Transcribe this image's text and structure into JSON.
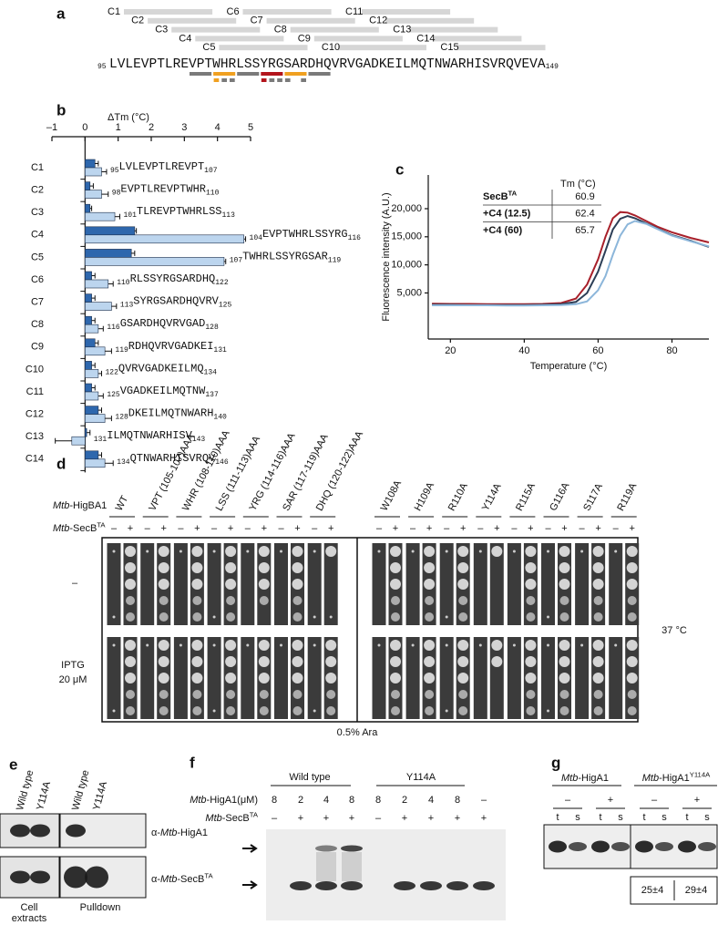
{
  "panel_a": {
    "label": "a",
    "peptides": [
      "C1",
      "C2",
      "C3",
      "C4",
      "C5",
      "C6",
      "C7",
      "C8",
      "C9",
      "C10",
      "C11",
      "C12",
      "C13",
      "C14",
      "C15"
    ],
    "sequence": {
      "start": 95,
      "residues": "LVLEVPTLREVPTWHRLSSYRGSARDHQVRVGADKEILMQTNWARHISVRQVEVA",
      "end": 149
    }
  },
  "chart_data": [
    {
      "type": "bar",
      "orientation": "horizontal",
      "panel_label": "b",
      "title": "ΔTm (°C)",
      "xlim": [
        -1,
        5
      ],
      "xticks": [
        {
          "value": -1,
          "label": "–1"
        },
        0,
        1,
        2,
        3,
        4,
        5
      ],
      "categories": [
        "C1",
        "C2",
        "C3",
        "C4",
        "C5",
        "C6",
        "C7",
        "C8",
        "C9",
        "C10",
        "C11",
        "C12",
        "C13",
        "C14"
      ],
      "series": [
        {
          "color": "#2e67ad",
          "values": [
            0.3,
            0.15,
            0.15,
            1.5,
            1.4,
            0.2,
            0.2,
            0.2,
            0.3,
            0.2,
            0.2,
            0.4,
            0.05,
            0.4
          ],
          "errors": [
            0.1,
            0.1,
            0.05,
            0.05,
            0.1,
            0.1,
            0.1,
            0.1,
            0.1,
            0.1,
            0.1,
            0.1,
            0.1,
            0.1
          ]
        },
        {
          "color": "#bcd5ee",
          "values": [
            0.5,
            0.5,
            0.9,
            4.8,
            4.2,
            0.7,
            0.8,
            0.4,
            0.6,
            0.4,
            0.4,
            0.6,
            -0.4,
            0.6
          ],
          "errors": [
            0.15,
            0.2,
            0.15,
            0.05,
            0.05,
            0.15,
            0.15,
            0.15,
            0.2,
            0.1,
            0.15,
            0.2,
            0.5,
            0.25
          ]
        }
      ],
      "peptides": [
        {
          "start": 95,
          "sequence": "LVLEVPTLREVPT",
          "end": 107
        },
        {
          "start": 98,
          "sequence": "EVPTLREVPTWHR",
          "end": 110
        },
        {
          "start": 101,
          "sequence": "TLREVPTWHRLSS",
          "end": 113
        },
        {
          "start": 104,
          "sequence": "EVPTWHRLSSYRG",
          "end": 116
        },
        {
          "start": 107,
          "sequence": "TWHRLSSYRGSAR",
          "end": 119
        },
        {
          "start": 110,
          "sequence": "RLSSYRGSARDHQ",
          "end": 122
        },
        {
          "start": 113,
          "sequence": "SYRGSARDHQVRV",
          "end": 125
        },
        {
          "start": 116,
          "sequence": "GSARDHQVRVGAD",
          "end": 128
        },
        {
          "start": 119,
          "sequence": "RDHQVRVGADKEI",
          "end": 131
        },
        {
          "start": 122,
          "sequence": "QVRVGADKEILMQ",
          "end": 134
        },
        {
          "start": 125,
          "sequence": "VGADKEILMQTNW",
          "end": 137
        },
        {
          "start": 128,
          "sequence": "DKEILMQTNWARH",
          "end": 140
        },
        {
          "start": 131,
          "sequence": "ILMQTNWARHISV",
          "end": 143
        },
        {
          "start": 134,
          "sequence": "QTNWARHISVRQV",
          "end": 146
        }
      ]
    },
    {
      "type": "line",
      "panel_label": "c",
      "xlabel": "Temperature (°C)",
      "ylabel": "Fluorescence intensity (A.U.)",
      "xlim": [
        14,
        90
      ],
      "xticks": [
        20,
        40,
        60,
        80
      ],
      "ylim": [
        -3200,
        26000
      ],
      "yticks": [
        {
          "value": 5000,
          "label": "5,000"
        },
        {
          "value": 10000,
          "label": "10,000"
        },
        {
          "value": 15000,
          "label": "15,000"
        },
        {
          "value": 20000,
          "label": "20,000"
        }
      ],
      "legend_header": "Tm (°C)",
      "x": [
        15,
        20,
        25,
        30,
        35,
        40,
        45,
        50,
        54,
        57,
        60,
        62,
        64,
        66,
        68,
        70,
        73,
        76,
        80,
        85,
        90
      ],
      "series": [
        {
          "name": "SecB",
          "superscript": "TA",
          "color": "#a8202a",
          "tm": 60.9,
          "values": [
            3100,
            3050,
            3050,
            3000,
            3000,
            3000,
            3050,
            3200,
            4000,
            6500,
            11000,
            15000,
            18300,
            19400,
            19300,
            18800,
            17800,
            16800,
            15800,
            14800,
            14000
          ]
        },
        {
          "name": "+C4 (12.5)",
          "color": "#2c3e56",
          "tm": 62.4,
          "values": [
            2900,
            2900,
            2850,
            2850,
            2850,
            2850,
            2900,
            3000,
            3400,
            5000,
            8800,
            12500,
            16300,
            18200,
            18700,
            18300,
            17400,
            16500,
            15300,
            14300,
            13200
          ]
        },
        {
          "name": "+C4 (60)",
          "color": "#8cb6da",
          "tm": 65.7,
          "values": [
            2800,
            2800,
            2800,
            2800,
            2750,
            2750,
            2800,
            2850,
            3000,
            3500,
            5500,
            8000,
            11800,
            15200,
            17200,
            17800,
            17300,
            16400,
            15200,
            14200,
            13300
          ]
        }
      ]
    }
  ],
  "panel_d": {
    "label": "d",
    "higba1": {
      "italic": "Mtb",
      "text": "-HigBA1"
    },
    "secb": {
      "italic": "Mtb",
      "text": "-SecB",
      "sup": "TA"
    },
    "columns": [
      {
        "label": "WT",
        "signs": [
          "–",
          "+"
        ]
      },
      {
        "label": "VPT (105-107)AAA",
        "signs": [
          "–",
          "+"
        ]
      },
      {
        "label": "WHR (108-110)AAA",
        "signs": [
          "–",
          "+"
        ]
      },
      {
        "label": "LSS (111-113)AAA",
        "signs": [
          "–",
          "+"
        ]
      },
      {
        "label": "YRG (114-116)AAA",
        "signs": [
          "–",
          "+"
        ]
      },
      {
        "label": "SAR (117-119)AAA",
        "signs": [
          "–",
          "+"
        ]
      },
      {
        "label": "DHQ (120-122)AAA",
        "signs": [
          "–",
          "+"
        ]
      },
      {
        "label": "W108A",
        "signs": [
          "–",
          "+"
        ]
      },
      {
        "label": "H109A",
        "signs": [
          "–",
          "+"
        ]
      },
      {
        "label": "R110A",
        "signs": [
          "–",
          "+"
        ]
      },
      {
        "label": "Y114A",
        "signs": [
          "–",
          "+"
        ]
      },
      {
        "label": "R115A",
        "signs": [
          "–",
          "+"
        ]
      },
      {
        "label": "G116A",
        "signs": [
          "–",
          "+"
        ]
      },
      {
        "label": "S117A",
        "signs": [
          "–",
          "+"
        ]
      },
      {
        "label": "R119A",
        "signs": [
          "–",
          "+"
        ]
      }
    ],
    "row_labels": [
      "–",
      "IPTG",
      "20 μM"
    ],
    "temperature": "37 °C",
    "arabinose": "0.5% Ara"
  },
  "panel_e": {
    "label": "e",
    "lanes": [
      "Wild type",
      "Y114A",
      "Wild type",
      "Y114A"
    ],
    "antibodies": [
      {
        "pre": "α-",
        "italic": "Mtb",
        "text": "-HigA1"
      },
      {
        "pre": "α-",
        "italic": "Mtb",
        "text": "-SecB",
        "sup": "TA"
      }
    ],
    "groups": [
      {
        "lines": [
          "Cell",
          "extracts"
        ]
      },
      {
        "lines": [
          "Pulldown"
        ]
      }
    ]
  },
  "panel_f": {
    "label": "f",
    "groups": [
      "Wild type",
      "Y114A"
    ],
    "higa1": {
      "italic": "Mtb",
      "text": "-HigA1(μM)"
    },
    "concentrations": [
      8,
      2,
      4,
      8,
      8,
      2,
      4,
      8,
      "–"
    ],
    "secb": {
      "italic": "Mtb",
      "text": "-SecB",
      "sup": "TA"
    },
    "secb_signs": [
      "–",
      "+",
      "+",
      "+",
      "–",
      "+",
      "+",
      "+",
      "+"
    ]
  },
  "panel_g": {
    "label": "g",
    "groups": [
      {
        "name": {
          "italic": "Mtb",
          "text": "-HigA1"
        },
        "signs": [
          "–",
          "+"
        ]
      },
      {
        "name": {
          "italic": "Mtb",
          "text": "-HigA1",
          "sup": "Y114A"
        },
        "signs": [
          "–",
          "+"
        ]
      }
    ],
    "fractions": [
      "t",
      "s",
      "t",
      "s",
      "t",
      "s",
      "t",
      "s"
    ],
    "ratios": [
      "25±4",
      "29±4"
    ]
  }
}
